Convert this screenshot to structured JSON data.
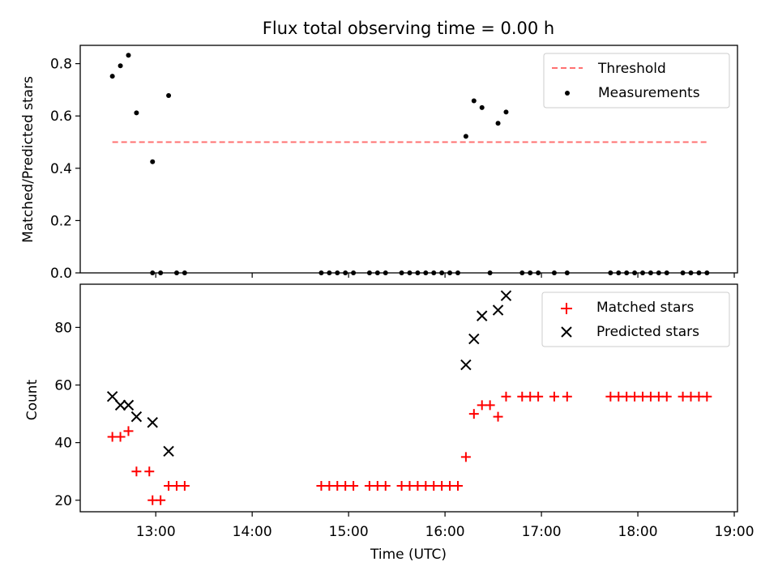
{
  "chart_data": [
    {
      "type": "scatter",
      "title": "Flux total observing time = 0.00 h",
      "xlabel": "",
      "ylabel": "Matched/Predicted stars",
      "xlim": [
        "12:13",
        "19:02"
      ],
      "ylim": [
        0,
        0.87
      ],
      "yticks": [
        "0.0",
        "0.2",
        "0.4",
        "0.6",
        "0.8"
      ],
      "legend_position": "top-right",
      "threshold": {
        "name": "Threshold",
        "value": 0.5,
        "x_range": [
          "12:33",
          "18:43"
        ],
        "color": "#ff7070",
        "style": "dashed"
      },
      "series": [
        {
          "name": "Measurements",
          "color": "#000000",
          "marker": "dot",
          "points": [
            [
              "12:33",
              0.752
            ],
            [
              "12:38",
              0.792
            ],
            [
              "12:43",
              0.832
            ],
            [
              "12:48",
              0.612
            ],
            [
              "12:58",
              0.425
            ],
            [
              "13:08",
              0.678
            ],
            [
              "12:58",
              0.0
            ],
            [
              "13:03",
              0.0
            ],
            [
              "13:13",
              0.0
            ],
            [
              "13:18",
              0.0
            ],
            [
              "14:43",
              0.0
            ],
            [
              "14:48",
              0.0
            ],
            [
              "14:53",
              0.0
            ],
            [
              "14:58",
              0.0
            ],
            [
              "15:03",
              0.0
            ],
            [
              "15:13",
              0.0
            ],
            [
              "15:18",
              0.0
            ],
            [
              "15:23",
              0.0
            ],
            [
              "15:33",
              0.0
            ],
            [
              "15:38",
              0.0
            ],
            [
              "15:43",
              0.0
            ],
            [
              "15:48",
              0.0
            ],
            [
              "15:53",
              0.0
            ],
            [
              "15:58",
              0.0
            ],
            [
              "16:03",
              0.0
            ],
            [
              "16:08",
              0.0
            ],
            [
              "16:13",
              0.522
            ],
            [
              "16:18",
              0.658
            ],
            [
              "16:23",
              0.632
            ],
            [
              "16:28",
              0.0
            ],
            [
              "16:33",
              0.572
            ],
            [
              "16:38",
              0.615
            ],
            [
              "16:48",
              0.0
            ],
            [
              "16:53",
              0.0
            ],
            [
              "16:58",
              0.0
            ],
            [
              "17:08",
              0.0
            ],
            [
              "17:16",
              0.0
            ],
            [
              "17:43",
              0.0
            ],
            [
              "17:48",
              0.0
            ],
            [
              "17:53",
              0.0
            ],
            [
              "17:58",
              0.0
            ],
            [
              "18:03",
              0.0
            ],
            [
              "18:08",
              0.0
            ],
            [
              "18:13",
              0.0
            ],
            [
              "18:18",
              0.0
            ],
            [
              "18:28",
              0.0
            ],
            [
              "18:33",
              0.0
            ],
            [
              "18:38",
              0.0
            ],
            [
              "18:43",
              0.0
            ]
          ]
        }
      ]
    },
    {
      "type": "scatter",
      "title": "",
      "xlabel": "Time (UTC)",
      "ylabel": "Count",
      "xlim": [
        "12:13",
        "19:02"
      ],
      "ylim": [
        16,
        95
      ],
      "xticks": [
        "13:00",
        "14:00",
        "15:00",
        "16:00",
        "17:00",
        "18:00",
        "19:00"
      ],
      "yticks": [
        "20",
        "40",
        "60",
        "80"
      ],
      "legend_position": "top-right",
      "series": [
        {
          "name": "Matched stars",
          "color": "#ff0000",
          "marker": "plus",
          "points": [
            [
              "12:33",
              42
            ],
            [
              "12:38",
              42
            ],
            [
              "12:43",
              44
            ],
            [
              "12:48",
              30
            ],
            [
              "12:56",
              30
            ],
            [
              "12:58",
              20
            ],
            [
              "13:03",
              20
            ],
            [
              "13:08",
              25
            ],
            [
              "13:13",
              25
            ],
            [
              "13:18",
              25
            ],
            [
              "14:43",
              25
            ],
            [
              "14:48",
              25
            ],
            [
              "14:53",
              25
            ],
            [
              "14:58",
              25
            ],
            [
              "15:03",
              25
            ],
            [
              "15:13",
              25
            ],
            [
              "15:18",
              25
            ],
            [
              "15:23",
              25
            ],
            [
              "15:33",
              25
            ],
            [
              "15:38",
              25
            ],
            [
              "15:43",
              25
            ],
            [
              "15:48",
              25
            ],
            [
              "15:53",
              25
            ],
            [
              "15:58",
              25
            ],
            [
              "16:03",
              25
            ],
            [
              "16:08",
              25
            ],
            [
              "16:13",
              35
            ],
            [
              "16:18",
              50
            ],
            [
              "16:23",
              53
            ],
            [
              "16:28",
              53
            ],
            [
              "16:33",
              49
            ],
            [
              "16:38",
              56
            ],
            [
              "16:48",
              56
            ],
            [
              "16:53",
              56
            ],
            [
              "16:58",
              56
            ],
            [
              "17:08",
              56
            ],
            [
              "17:16",
              56
            ],
            [
              "17:43",
              56
            ],
            [
              "17:48",
              56
            ],
            [
              "17:53",
              56
            ],
            [
              "17:58",
              56
            ],
            [
              "18:03",
              56
            ],
            [
              "18:08",
              56
            ],
            [
              "18:13",
              56
            ],
            [
              "18:18",
              56
            ],
            [
              "18:28",
              56
            ],
            [
              "18:33",
              56
            ],
            [
              "18:38",
              56
            ],
            [
              "18:43",
              56
            ]
          ]
        },
        {
          "name": "Predicted stars",
          "color": "#000000",
          "marker": "x",
          "points": [
            [
              "12:33",
              56
            ],
            [
              "12:38",
              53
            ],
            [
              "12:43",
              53
            ],
            [
              "12:48",
              49
            ],
            [
              "12:58",
              47
            ],
            [
              "13:08",
              37
            ],
            [
              "16:13",
              67
            ],
            [
              "16:18",
              76
            ],
            [
              "16:23",
              84
            ],
            [
              "16:33",
              86
            ],
            [
              "16:38",
              91
            ]
          ]
        }
      ]
    }
  ]
}
